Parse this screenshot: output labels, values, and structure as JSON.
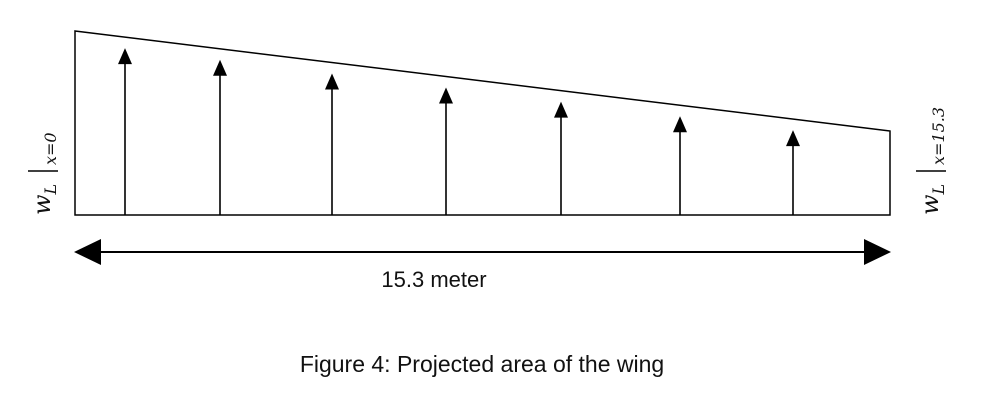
{
  "diagram": {
    "span_label": "15.3 meter",
    "caption": "Figure 4: Projected area of the wing",
    "left_load_label": {
      "var": "w",
      "sub": "L",
      "eval": "x=0"
    },
    "right_load_label": {
      "var": "w",
      "sub": "L",
      "eval": "x=15.3"
    },
    "arrow_count": 7,
    "line_color": "#000000"
  }
}
